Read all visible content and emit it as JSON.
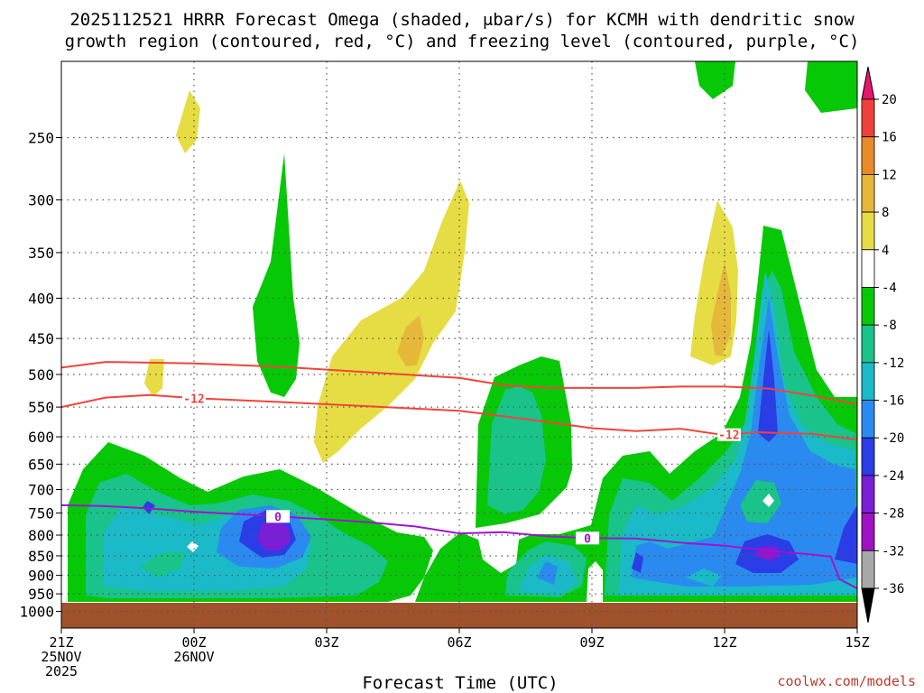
{
  "chart_data": {
    "type": "heatmap",
    "title_line1": "2025112521 HRRR Forecast Omega (shaded, μbar/s) for KCMH with dendritic snow",
    "title_line2": "growth region (contoured, red, °C) and freezing level (contoured, purple, °C)",
    "xlabel": "Forecast Time (UTC)",
    "ylabel": "",
    "x_ticks": [
      {
        "hour": 0,
        "label": "21Z",
        "sub1": "25NOV",
        "sub2": "2025"
      },
      {
        "hour": 3,
        "label": "00Z",
        "sub1": "26NOV",
        "sub2": ""
      },
      {
        "hour": 6,
        "label": "03Z",
        "sub1": "",
        "sub2": ""
      },
      {
        "hour": 9,
        "label": "06Z",
        "sub1": "",
        "sub2": ""
      },
      {
        "hour": 12,
        "label": "09Z",
        "sub1": "",
        "sub2": ""
      },
      {
        "hour": 15,
        "label": "12Z",
        "sub1": "",
        "sub2": ""
      },
      {
        "hour": 18,
        "label": "15Z",
        "sub1": "",
        "sub2": ""
      }
    ],
    "x_range_hours": [
      0,
      18
    ],
    "y_axis": "pressure (hPa), log scale, decreasing upward",
    "y_range_hpa": [
      1050,
      200
    ],
    "y_ticks": [
      250,
      300,
      350,
      400,
      450,
      500,
      550,
      600,
      650,
      700,
      750,
      800,
      850,
      900,
      950,
      1000
    ],
    "colorbar": {
      "labels": [
        "20",
        "16",
        "12",
        "8",
        "4",
        "-4",
        "-8",
        "-12",
        "-16",
        "-20",
        "-24",
        "-28",
        "-32",
        "-36"
      ],
      "colors": [
        "#e8146e",
        "#f0403a",
        "#e88a2a",
        "#e6b83a",
        "#e6dd44",
        "#ffffff",
        "#06c806",
        "#19c389",
        "#1abac8",
        "#2b8af0",
        "#2a3de6",
        "#7a1fd6",
        "#9e12c2",
        "#a8a8a8",
        "#000000"
      ]
    },
    "contours": [
      {
        "name": "dendritic upper bound",
        "value": -12,
        "color": "#f0443c",
        "points": [
          [
            0,
            490
          ],
          [
            1,
            482
          ],
          [
            2,
            483
          ],
          [
            3,
            484
          ],
          [
            5,
            489
          ],
          [
            7,
            497
          ],
          [
            9,
            505
          ],
          [
            10,
            516
          ],
          [
            11,
            520
          ],
          [
            13,
            520
          ],
          [
            14,
            518
          ],
          [
            15,
            518
          ],
          [
            16,
            521
          ],
          [
            17,
            532
          ],
          [
            18,
            546
          ]
        ]
      },
      {
        "name": "dendritic lower bound",
        "value": -12,
        "color": "#f0443c",
        "label": "-12",
        "points": [
          [
            0,
            550
          ],
          [
            1,
            535
          ],
          [
            2,
            531
          ],
          [
            3,
            536
          ],
          [
            5,
            542
          ],
          [
            7,
            549
          ],
          [
            9,
            556
          ],
          [
            10,
            565
          ],
          [
            11,
            575
          ],
          [
            12,
            585
          ],
          [
            13,
            590
          ],
          [
            14,
            586
          ],
          [
            15,
            597
          ],
          [
            15.7,
            592
          ],
          [
            17,
            595
          ],
          [
            18,
            605
          ]
        ]
      },
      {
        "name": "freezing level",
        "value": 0,
        "color": "#a014d2",
        "label": "0",
        "points": [
          [
            0,
            733
          ],
          [
            1,
            735
          ],
          [
            2,
            740
          ],
          [
            3,
            747
          ],
          [
            5,
            758
          ],
          [
            6,
            764
          ],
          [
            7,
            771
          ],
          [
            8,
            780
          ],
          [
            9,
            796
          ],
          [
            10,
            793
          ],
          [
            11,
            803
          ],
          [
            11.9,
            807
          ],
          [
            13,
            808
          ],
          [
            14,
            818
          ],
          [
            15,
            825
          ],
          [
            16,
            837
          ],
          [
            17,
            847
          ],
          [
            17.4,
            852
          ],
          [
            17.6,
            910
          ],
          [
            18,
            935
          ]
        ]
      }
    ],
    "omega_regions": [
      {
        "name": "updraft core",
        "min_value": -24,
        "hour": 15,
        "pressure": 510
      },
      {
        "name": "updraft core",
        "min_value": -24,
        "hour": 2,
        "pressure": 800
      },
      {
        "name": "updraft core",
        "min_value": -28,
        "hour": 16,
        "pressure": 850
      },
      {
        "name": "descent",
        "max_value": 12,
        "hour": 14.9,
        "pressure": 420
      }
    ],
    "credit": "coolwx.com/models"
  }
}
